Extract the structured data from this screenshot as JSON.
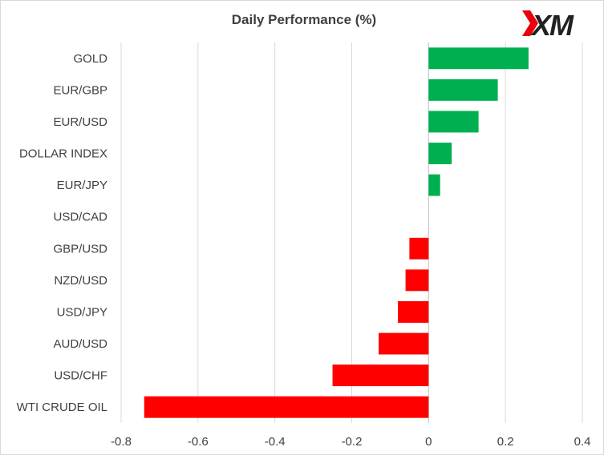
{
  "logo": {
    "text": "XM",
    "accent_color": "#e8000b"
  },
  "chart_data": {
    "type": "bar",
    "orientation": "horizontal",
    "title": "Daily Performance  (%)",
    "xlabel": "",
    "ylabel": "",
    "categories": [
      "GOLD",
      "EUR/GBP",
      "EUR/USD",
      "DOLLAR INDEX",
      "EUR/JPY",
      "USD/CAD",
      "GBP/USD",
      "NZD/USD",
      "USD/JPY",
      "AUD/USD",
      "USD/CHF",
      "WTI CRUDE OIL"
    ],
    "values": [
      0.26,
      0.18,
      0.13,
      0.06,
      0.03,
      0.0,
      -0.05,
      -0.06,
      -0.08,
      -0.13,
      -0.25,
      -0.74
    ],
    "xlim": [
      -0.8,
      0.4
    ],
    "xticks": [
      -0.8,
      -0.6,
      -0.4,
      -0.2,
      0,
      0.2,
      0.4
    ],
    "xtick_labels": [
      "-0.8",
      "-0.6",
      "-0.4",
      "-0.2",
      "0",
      "0.2",
      "0.4"
    ],
    "grid": "vertical",
    "legend": "none",
    "colors": {
      "positive": "#00b050",
      "negative": "#ff0000",
      "grid": "#d9d9d9",
      "axis": "#bfbfbf"
    }
  }
}
